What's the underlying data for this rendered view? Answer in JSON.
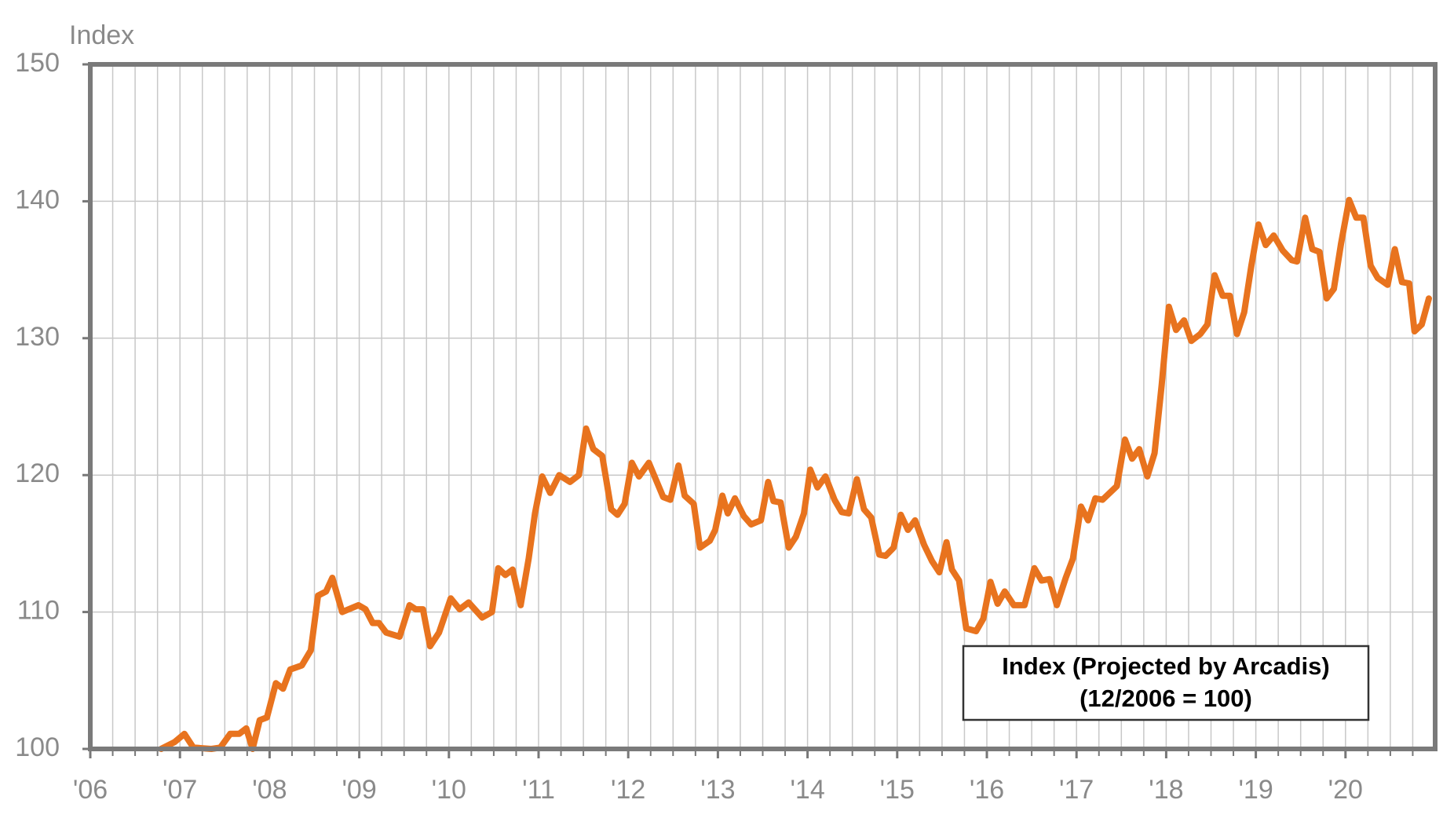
{
  "chart_data": {
    "type": "line",
    "y_label": "Index",
    "xlim": [
      2006,
      2021
    ],
    "ylim": [
      100,
      150
    ],
    "yticks": [
      100,
      110,
      120,
      130,
      140,
      150
    ],
    "xticks": [
      {
        "value": 2006,
        "label": "'06"
      },
      {
        "value": 2007,
        "label": "'07"
      },
      {
        "value": 2008,
        "label": "'08"
      },
      {
        "value": 2009,
        "label": "'09"
      },
      {
        "value": 2010,
        "label": "'10"
      },
      {
        "value": 2011,
        "label": "'11"
      },
      {
        "value": 2012,
        "label": "'12"
      },
      {
        "value": 2013,
        "label": "'13"
      },
      {
        "value": 2014,
        "label": "'14"
      },
      {
        "value": 2015,
        "label": "'15"
      },
      {
        "value": 2016,
        "label": "'16"
      },
      {
        "value": 2017,
        "label": "'17"
      },
      {
        "value": 2018,
        "label": "'18"
      },
      {
        "value": 2019,
        "label": "'19"
      },
      {
        "value": 2020,
        "label": "'20"
      }
    ],
    "xminorticks": [
      2006.25,
      2006.5,
      2006.75,
      2007.25,
      2007.5,
      2007.75,
      2008.25,
      2008.5,
      2008.75,
      2009.25,
      2009.5,
      2009.75,
      2010.25,
      2010.5,
      2010.75,
      2011.25,
      2011.5,
      2011.75,
      2012.25,
      2012.5,
      2012.75,
      2013.25,
      2013.5,
      2013.75,
      2014.25,
      2014.5,
      2014.75,
      2015.25,
      2015.5,
      2015.75,
      2016.25,
      2016.5,
      2016.75,
      2017.25,
      2017.5,
      2017.75,
      2018.25,
      2018.5,
      2018.75,
      2019.25,
      2019.5,
      2019.75,
      2020.25,
      2020.5,
      2020.75
    ],
    "grid": true,
    "series": [
      {
        "name": "Index (Projected by Arcadis)",
        "subtitle": "(12/2006 = 100)",
        "color": "#e8731e",
        "x": [
          2006.79,
          2006.94,
          2007.05,
          2007.15,
          2007.35,
          2007.45,
          2007.56,
          2007.66,
          2007.74,
          2007.81,
          2007.89,
          2007.97,
          2008.07,
          2008.15,
          2008.23,
          2008.36,
          2008.46,
          2008.54,
          2008.63,
          2008.7,
          2008.81,
          2008.99,
          2009.07,
          2009.15,
          2009.22,
          2009.3,
          2009.45,
          2009.56,
          2009.63,
          2009.71,
          2009.79,
          2009.89,
          2010.02,
          2010.12,
          2010.22,
          2010.37,
          2010.48,
          2010.55,
          2010.63,
          2010.71,
          2010.8,
          2010.89,
          2010.96,
          2011.04,
          2011.13,
          2011.23,
          2011.35,
          2011.45,
          2011.53,
          2011.61,
          2011.71,
          2011.81,
          2011.88,
          2011.96,
          2012.04,
          2012.12,
          2012.23,
          2012.39,
          2012.47,
          2012.56,
          2012.63,
          2012.73,
          2012.8,
          2012.91,
          2012.97,
          2013.05,
          2013.11,
          2013.19,
          2013.29,
          2013.37,
          2013.48,
          2013.56,
          2013.62,
          2013.7,
          2013.79,
          2013.87,
          2013.96,
          2014.03,
          2014.11,
          2014.2,
          2014.3,
          2014.38,
          2014.46,
          2014.55,
          2014.63,
          2014.71,
          2014.8,
          2014.87,
          2014.96,
          2015.04,
          2015.12,
          2015.2,
          2015.3,
          2015.39,
          2015.47,
          2015.55,
          2015.61,
          2015.69,
          2015.77,
          2015.88,
          2015.96,
          2016.04,
          2016.12,
          2016.2,
          2016.3,
          2016.42,
          2016.53,
          2016.61,
          2016.7,
          2016.78,
          2016.88,
          2016.96,
          2017.05,
          2017.13,
          2017.21,
          2017.29,
          2017.45,
          2017.54,
          2017.62,
          2017.7,
          2017.79,
          2017.87,
          2017.95,
          2018.03,
          2018.11,
          2018.2,
          2018.28,
          2018.38,
          2018.46,
          2018.54,
          2018.63,
          2018.71,
          2018.79,
          2018.87,
          2018.95,
          2019.03,
          2019.11,
          2019.2,
          2019.3,
          2019.4,
          2019.46,
          2019.55,
          2019.63,
          2019.71,
          2019.79,
          2019.87,
          2019.95,
          2020.04,
          2020.12,
          2020.2,
          2020.28,
          2020.36,
          2020.47,
          2020.55,
          2020.63,
          2020.71,
          2020.77,
          2020.85,
          2020.93
        ],
        "values": [
          100,
          100.5,
          101.1,
          100.1,
          100,
          100.1,
          101.1,
          101.1,
          101.5,
          100,
          102.1,
          102.3,
          104.8,
          104.4,
          105.8,
          106.1,
          107.2,
          111.2,
          111.5,
          112.5,
          110.0,
          110.5,
          110.2,
          109.2,
          109.2,
          108.5,
          108.2,
          110.5,
          110.2,
          110.2,
          107.5,
          108.5,
          111.0,
          110.2,
          110.7,
          109.6,
          110.0,
          113.2,
          112.7,
          113.1,
          110.5,
          113.9,
          117.2,
          119.9,
          118.7,
          120.0,
          119.5,
          120.0,
          123.4,
          121.9,
          121.4,
          117.5,
          117.1,
          117.9,
          120.9,
          119.9,
          120.9,
          118.4,
          118.2,
          120.7,
          118.5,
          117.9,
          114.7,
          115.2,
          116.0,
          118.5,
          117.2,
          118.3,
          117.0,
          116.4,
          116.7,
          119.5,
          118.1,
          118.0,
          114.7,
          115.5,
          117.2,
          120.4,
          119.1,
          119.9,
          118.2,
          117.3,
          117.2,
          119.7,
          117.5,
          116.9,
          114.2,
          114.1,
          114.7,
          117.1,
          116.0,
          116.7,
          114.9,
          113.7,
          112.9,
          115.1,
          113.1,
          112.3,
          108.8,
          108.6,
          109.5,
          112.2,
          110.6,
          111.5,
          110.5,
          110.5,
          113.2,
          112.3,
          112.4,
          110.5,
          112.5,
          113.9,
          117.7,
          116.7,
          118.3,
          118.2,
          119.2,
          122.6,
          121.2,
          121.9,
          119.9,
          121.6,
          126.6,
          132.3,
          130.6,
          131.3,
          129.8,
          130.3,
          131.0,
          134.6,
          133.1,
          133.1,
          130.3,
          131.9,
          135.3,
          138.3,
          136.8,
          137.5,
          136.4,
          135.7,
          135.6,
          138.8,
          136.5,
          136.3,
          132.9,
          133.6,
          136.9,
          140.1,
          138.8,
          138.8,
          135.3,
          134.4,
          133.9,
          136.5,
          134.1,
          134.0,
          130.5,
          131.0,
          132.9
        ]
      }
    ]
  }
}
